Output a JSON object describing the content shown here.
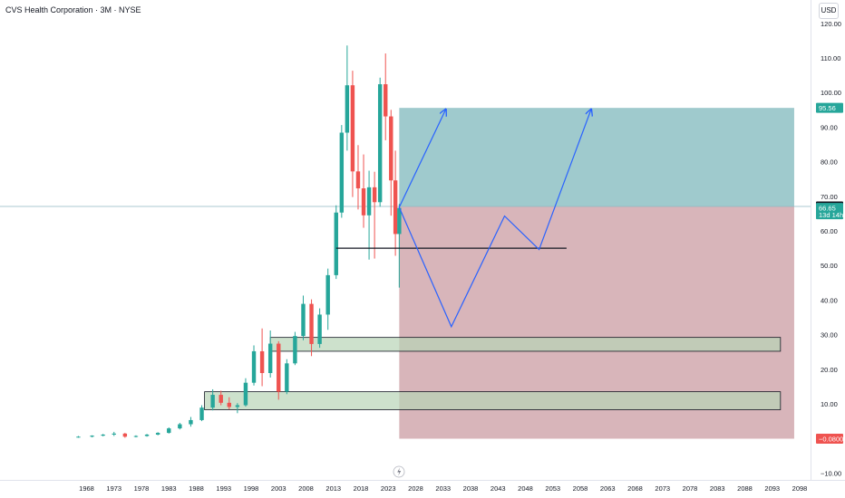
{
  "header": {
    "title": "CVS Health Corporation · 3M · NYSE",
    "currency": "USD"
  },
  "colors": {
    "up": "#26a69a",
    "down": "#ef5350",
    "target_zone": "#9fcacd",
    "stop_zone": "#d8b5ba",
    "support_box": "#b8d4b7",
    "projection": "#2962ff",
    "support_line": "#131722",
    "hline": "#8fb8c0"
  },
  "chart_data": {
    "type": "candlestick",
    "title": "CVS Health Corporation · 3M · NYSE",
    "y_scale": "linear",
    "ylim": [
      -12,
      122
    ],
    "xlim": [
      1965,
      2100
    ],
    "y_ticks": [
      -10,
      10,
      20,
      30,
      40,
      50,
      60,
      70,
      80,
      90,
      100,
      110,
      120
    ],
    "y_tick_labels": [
      "−10.00",
      "10.00",
      "20.00",
      "30.00",
      "40.00",
      "50.00",
      "60.00",
      "70.00",
      "80.00",
      "90.00",
      "100.00",
      "110.00",
      "120.00"
    ],
    "x_ticks": [
      "1968",
      "1973",
      "1978",
      "1983",
      "1988",
      "1993",
      "1998",
      "2003",
      "2008",
      "2013",
      "2018",
      "2023",
      "2028",
      "2033",
      "2038",
      "2043",
      "2048",
      "2053",
      "2058",
      "2063",
      "2068",
      "2073",
      "2078",
      "2083",
      "2088",
      "2093",
      "2098"
    ],
    "price_tags": [
      {
        "label": "95.56",
        "value": 95.56,
        "color": "#26a69a"
      },
      {
        "label": "67.06",
        "value": 67.06,
        "color": "#131722"
      },
      {
        "label": "66.65",
        "value": 66.65,
        "color": "#26a69a",
        "sub": "13d 14h"
      },
      {
        "label": "−0.0800",
        "value": -0.08,
        "color": "#ef5350"
      }
    ],
    "price_series": [
      {
        "t": 1966.5,
        "o": 0.4,
        "h": 0.7,
        "l": 0.2,
        "c": 0.5
      },
      {
        "t": 1969,
        "o": 0.5,
        "h": 0.9,
        "l": 0.3,
        "c": 0.8
      },
      {
        "t": 1971,
        "o": 0.8,
        "h": 1.3,
        "l": 0.6,
        "c": 1.1
      },
      {
        "t": 1973,
        "o": 1.1,
        "h": 1.9,
        "l": 0.7,
        "c": 1.4
      },
      {
        "t": 1975,
        "o": 1.4,
        "h": 1.6,
        "l": 0.2,
        "c": 0.5
      },
      {
        "t": 1977,
        "o": 0.5,
        "h": 0.9,
        "l": 0.3,
        "c": 0.7
      },
      {
        "t": 1979,
        "o": 0.7,
        "h": 1.3,
        "l": 0.5,
        "c": 1.1
      },
      {
        "t": 1981,
        "o": 1.1,
        "h": 1.8,
        "l": 0.9,
        "c": 1.6
      },
      {
        "t": 1983,
        "o": 1.6,
        "h": 3.2,
        "l": 1.4,
        "c": 2.9
      },
      {
        "t": 1985,
        "o": 2.9,
        "h": 4.5,
        "l": 2.6,
        "c": 4.1
      },
      {
        "t": 1987,
        "o": 4.1,
        "h": 6.2,
        "l": 3.4,
        "c": 5.3
      },
      {
        "t": 1989,
        "o": 5.3,
        "h": 9.6,
        "l": 5.0,
        "c": 8.9
      },
      {
        "t": 1991,
        "o": 8.9,
        "h": 14.2,
        "l": 8.1,
        "c": 12.6
      },
      {
        "t": 1992.5,
        "o": 12.6,
        "h": 13.8,
        "l": 9.6,
        "c": 10.3
      },
      {
        "t": 1994,
        "o": 10.3,
        "h": 11.9,
        "l": 8.4,
        "c": 9.1
      },
      {
        "t": 1995.5,
        "o": 9.1,
        "h": 10.2,
        "l": 7.3,
        "c": 9.6
      },
      {
        "t": 1997,
        "o": 9.6,
        "h": 17.4,
        "l": 9.2,
        "c": 16.1
      },
      {
        "t": 1998.5,
        "o": 16.1,
        "h": 26.9,
        "l": 15.3,
        "c": 25.2
      },
      {
        "t": 2000,
        "o": 25.2,
        "h": 31.8,
        "l": 15.1,
        "c": 18.9
      },
      {
        "t": 2001.5,
        "o": 18.9,
        "h": 31.2,
        "l": 17.6,
        "c": 27.4
      },
      {
        "t": 2003,
        "o": 27.4,
        "h": 28.1,
        "l": 11.2,
        "c": 13.5
      },
      {
        "t": 2004.5,
        "o": 13.5,
        "h": 22.9,
        "l": 12.8,
        "c": 21.7
      },
      {
        "t": 2006,
        "o": 21.7,
        "h": 30.8,
        "l": 21.2,
        "c": 29.6
      },
      {
        "t": 2007.5,
        "o": 29.6,
        "h": 41.3,
        "l": 28.4,
        "c": 38.9
      },
      {
        "t": 2009,
        "o": 38.9,
        "h": 40.2,
        "l": 23.8,
        "c": 27.3
      },
      {
        "t": 2010.5,
        "o": 27.3,
        "h": 37.6,
        "l": 26.2,
        "c": 35.8
      },
      {
        "t": 2012,
        "o": 35.8,
        "h": 49.1,
        "l": 31.4,
        "c": 47.2
      },
      {
        "t": 2013.5,
        "o": 47.2,
        "h": 67.4,
        "l": 46.1,
        "c": 65.3
      },
      {
        "t": 2014.5,
        "o": 65.3,
        "h": 90.6,
        "l": 63.8,
        "c": 88.4
      },
      {
        "t": 2015.5,
        "o": 88.4,
        "h": 113.6,
        "l": 83.2,
        "c": 102.1
      },
      {
        "t": 2016.5,
        "o": 102.1,
        "h": 106.3,
        "l": 69.8,
        "c": 77.2
      },
      {
        "t": 2017.5,
        "o": 77.2,
        "h": 84.8,
        "l": 66.2,
        "c": 72.3
      },
      {
        "t": 2018.5,
        "o": 72.3,
        "h": 82.1,
        "l": 60.9,
        "c": 64.5
      },
      {
        "t": 2019.5,
        "o": 64.5,
        "h": 77.4,
        "l": 51.7,
        "c": 72.6
      },
      {
        "t": 2020.5,
        "o": 72.6,
        "h": 77.1,
        "l": 52.0,
        "c": 68.3
      },
      {
        "t": 2021.5,
        "o": 68.3,
        "h": 104.3,
        "l": 67.0,
        "c": 102.4
      },
      {
        "t": 2022.5,
        "o": 102.4,
        "h": 111.3,
        "l": 86.2,
        "c": 93.1
      },
      {
        "t": 2023.5,
        "o": 93.1,
        "h": 95.0,
        "l": 64.4,
        "c": 74.6
      },
      {
        "t": 2024.3,
        "o": 74.6,
        "h": 83.2,
        "l": 52.8,
        "c": 59.1
      },
      {
        "t": 2025,
        "o": 59.1,
        "h": 67.8,
        "l": 43.6,
        "c": 66.65
      }
    ],
    "annotations": {
      "target_zone": {
        "x_start": 2025.0,
        "x_end": 2097.0,
        "y_from": 67.06,
        "y_to": 95.56
      },
      "stop_zone": {
        "x_start": 2025.0,
        "x_end": 2097.0,
        "y_from": 67.06,
        "y_to": -0.08
      },
      "support_boxes": [
        {
          "x_start": 2001.5,
          "x_end": 2094.5,
          "y_low": 25.2,
          "y_high": 29.2
        },
        {
          "x_start": 1989.5,
          "x_end": 2094.5,
          "y_low": 8.3,
          "y_high": 13.5
        }
      ],
      "support_line": {
        "x_start": 2013.5,
        "x_end": 2055.5,
        "y": 55.0
      },
      "horizontal_line": {
        "y": 67.06
      },
      "paths": [
        {
          "points": [
            [
              2025.0,
              66.8
            ],
            [
              2033.5,
              95.2
            ]
          ],
          "arrow": true
        },
        {
          "points": [
            [
              2025.0,
              66.8
            ],
            [
              2034.5,
              32.3
            ],
            [
              2044.2,
              64.3
            ],
            [
              2050.5,
              54.6
            ],
            [
              2060.0,
              95.2
            ]
          ],
          "arrow": true
        }
      ]
    }
  }
}
